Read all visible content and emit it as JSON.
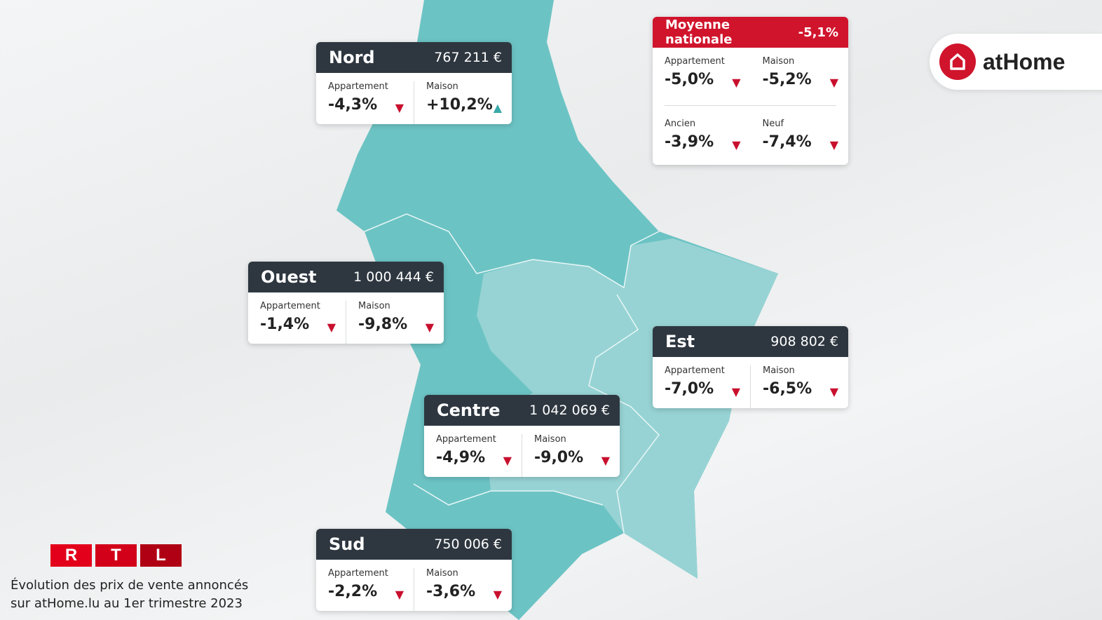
{
  "colors": {
    "accent": "#d0142c",
    "header": "#2e3740",
    "down": "#c8102e",
    "up": "#3aa9a9",
    "map_dark": "#6cc3c4",
    "map_light": "#97d3d4"
  },
  "national": {
    "title": "Moyenne nationale",
    "value": "-5,1%",
    "items": [
      {
        "label": "Appartement",
        "value": "-5,0%",
        "trend": "down"
      },
      {
        "label": "Maison",
        "value": "-5,2%",
        "trend": "down"
      },
      {
        "label": "Ancien",
        "value": "-3,9%",
        "trend": "down"
      },
      {
        "label": "Neuf",
        "value": "-7,4%",
        "trend": "down"
      }
    ]
  },
  "regions": {
    "nord": {
      "name": "Nord",
      "price": "767 211 €",
      "apt": "-4,3%",
      "maison": "+10,2%"
    },
    "ouest": {
      "name": "Ouest",
      "price": "1 000 444 €",
      "apt": "-1,4%",
      "maison": "-9,8%"
    },
    "est": {
      "name": "Est",
      "price": "908 802 €",
      "apt": "-7,0%",
      "maison": "-6,5%"
    },
    "centre": {
      "name": "Centre",
      "price": "1 042 069 €",
      "apt": "-4,9%",
      "maison": "-9,0%"
    },
    "sud": {
      "name": "Sud",
      "price": "750 006 €",
      "apt": "-2,2%",
      "maison": "-3,6%"
    }
  },
  "labels": {
    "apt": "Appartement",
    "maison": "Maison",
    "down": "▼",
    "up": "▲"
  },
  "logo": {
    "text": "atHome"
  },
  "rtl": {
    "letters": [
      "R",
      "T",
      "L"
    ]
  },
  "caption": {
    "line1": "Évolution des prix de vente annoncés",
    "line2": "sur atHome.lu au 1er trimestre 2023"
  }
}
